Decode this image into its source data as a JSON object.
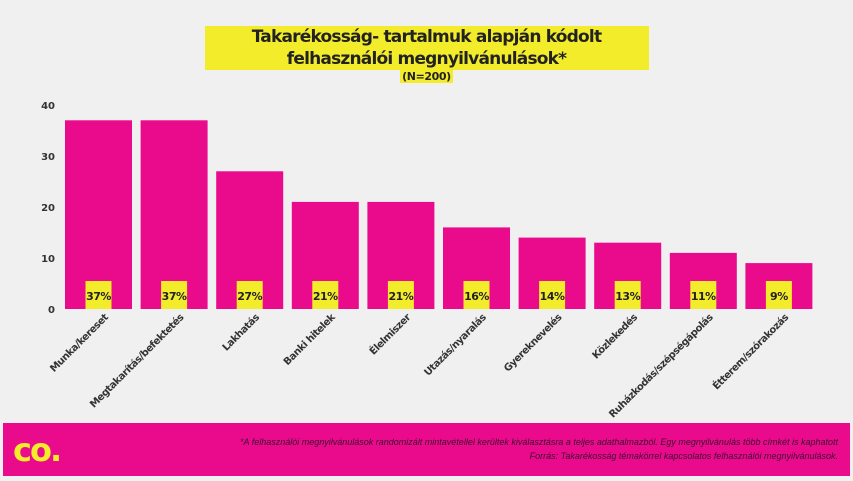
{
  "chart_data": {
    "type": "bar",
    "title": "Takarékosság- tartalmuk alapján kódolt felhasználói megnyilvánulások*",
    "subtitle": "(N=200)",
    "categories": [
      "Munka/kereset",
      "Megtakarítás/befektetés",
      "Lakhatás",
      "Banki hitelek",
      "Élelmiszer",
      "Utazás/nyaralás",
      "Gyereknevelés",
      "Közlekedés",
      "Ruházkodás/szépségápolás",
      "Étterem/szórakozás"
    ],
    "values": [
      37,
      37,
      27,
      21,
      21,
      16,
      14,
      13,
      11,
      9
    ],
    "data_labels": [
      "37%",
      "37%",
      "27%",
      "21%",
      "21%",
      "16%",
      "14%",
      "13%",
      "11%",
      "9%"
    ],
    "ylim": [
      0,
      40
    ],
    "yticks": [
      "0",
      "10",
      "20",
      "30",
      "40"
    ],
    "xlabel": "",
    "ylabel": "",
    "grid": false,
    "colors": {
      "bar": "#ea0a8c",
      "label_bg": "#f3ec2b"
    }
  },
  "footer": {
    "logo": "co.",
    "note": "*A felhasználói megnyilvánulások randomizált mintavétellel kerültek kiválasztásra a teljes adathalmazból. Egy megnyilvánulás több címkét is kaphatott",
    "source": "Forrás: Takarékosság témakörrel kapcsolatos felhasználói megnyilvánulások."
  }
}
